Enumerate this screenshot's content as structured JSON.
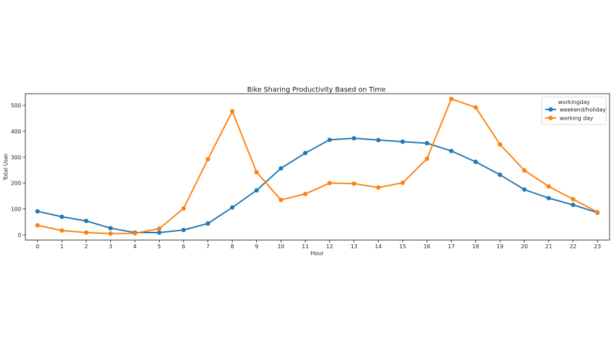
{
  "chart_data": {
    "type": "line",
    "title": "Bike Sharing Productivity Based on Time",
    "xlabel": "Hour",
    "ylabel": "Total User",
    "x": [
      0,
      1,
      2,
      3,
      4,
      5,
      6,
      7,
      8,
      9,
      10,
      11,
      12,
      13,
      14,
      15,
      16,
      17,
      18,
      19,
      20,
      21,
      22,
      23
    ],
    "xlim": [
      -0.5,
      23.5
    ],
    "ylim": [
      -20,
      545
    ],
    "yticks": [
      0,
      100,
      200,
      300,
      400,
      500
    ],
    "grid": false,
    "legend": {
      "title": "workingday",
      "placement": "top-right"
    },
    "series": [
      {
        "name": "weekend/holiday",
        "color": "#1f77b4",
        "values": [
          91,
          70,
          54,
          26,
          9,
          9,
          19,
          44,
          106,
          172,
          257,
          316,
          367,
          373,
          366,
          360,
          354,
          324,
          282,
          232,
          175,
          142,
          116,
          86
        ]
      },
      {
        "name": "working day",
        "color": "#ff7f0e",
        "values": [
          37,
          17,
          9,
          5,
          6,
          24,
          102,
          292,
          477,
          242,
          135,
          158,
          200,
          198,
          183,
          201,
          294,
          525,
          492,
          349,
          249,
          187,
          138,
          88
        ]
      }
    ]
  }
}
